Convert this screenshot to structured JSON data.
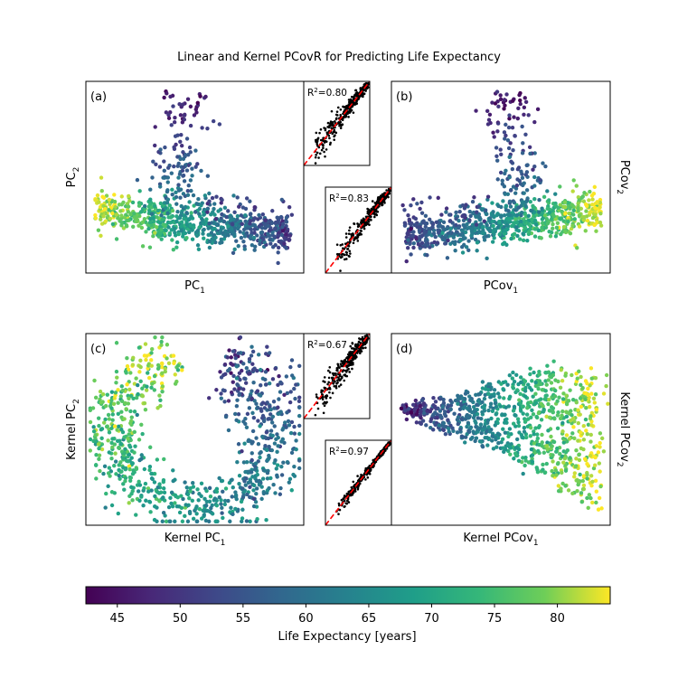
{
  "chart_data": {
    "title": "Linear and Kernel PCovR for Predicting Life Expectancy",
    "type": "scatter",
    "panels": [
      {
        "label": "(a)",
        "xlabel": {
          "base": "PC",
          "sub": "1"
        },
        "ylabel": {
          "base": "PC",
          "sub": "2"
        },
        "ylabel_side": "left"
      },
      {
        "label": "(b)",
        "xlabel": {
          "base": "PCov",
          "sub": "1"
        },
        "ylabel": {
          "base": "PCov",
          "sub": "2"
        },
        "ylabel_side": "right"
      },
      {
        "label": "(c)",
        "xlabel": {
          "base": "Kernel PC",
          "sub": "1"
        },
        "ylabel": {
          "base": "Kernel PC",
          "sub": "2"
        },
        "ylabel_side": "left"
      },
      {
        "label": "(d)",
        "xlabel": {
          "base": "Kernel PCov",
          "sub": "1"
        },
        "ylabel": {
          "base": "Kernel PCov",
          "sub": "2"
        },
        "ylabel_side": "right"
      }
    ],
    "insets": [
      {
        "r2_label": "R",
        "r2_sup": "2",
        "r2_value": "=0.80",
        "r2": 0.8
      },
      {
        "r2_label": "R",
        "r2_sup": "2",
        "r2_value": "=0.83",
        "r2": 0.83
      },
      {
        "r2_label": "R",
        "r2_sup": "2",
        "r2_value": "=0.67",
        "r2": 0.67
      },
      {
        "r2_label": "R",
        "r2_sup": "2",
        "r2_value": "=0.97",
        "r2": 0.97
      }
    ],
    "inset_point_color": "#000000",
    "inset_line_color": "#ff0000",
    "colorbar": {
      "label": "Life Expectancy [years]",
      "colormap": "viridis",
      "range": [
        42.5,
        84.2
      ],
      "ticks": [
        "45",
        "50",
        "55",
        "60",
        "65",
        "70",
        "75",
        "80"
      ]
    }
  }
}
